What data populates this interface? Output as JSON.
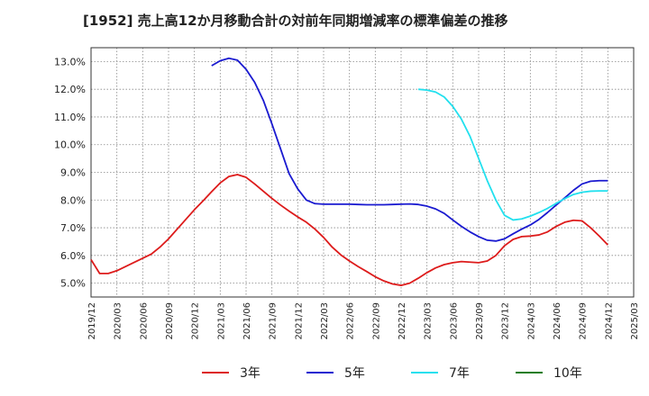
{
  "chart_data": {
    "type": "line",
    "title": "[1952]  売上高12か月移動合計の対前年同期増減率の標準偏差の推移",
    "xlabel": "",
    "ylabel": "",
    "ylim": [
      4.5,
      13.5
    ],
    "y_ticks": [
      5.0,
      6.0,
      7.0,
      8.0,
      9.0,
      10.0,
      11.0,
      12.0,
      13.0
    ],
    "y_tick_labels": [
      "5.0%",
      "6.0%",
      "7.0%",
      "8.0%",
      "9.0%",
      "10.0%",
      "11.0%",
      "12.0%",
      "13.0%"
    ],
    "x_tick_labels": [
      "2019/12",
      "2020/03",
      "2020/06",
      "2020/09",
      "2020/12",
      "2021/03",
      "2021/06",
      "2021/09",
      "2021/12",
      "2022/03",
      "2022/06",
      "2022/09",
      "2022/12",
      "2023/03",
      "2023/06",
      "2023/09",
      "2023/12",
      "2024/03",
      "2024/06",
      "2024/09",
      "2024/12",
      "2025/03"
    ],
    "x_start": "2019/12",
    "grid": true,
    "legend_position": "bottom",
    "series": [
      {
        "name": "3年",
        "color": "#dd1b1b",
        "points": [
          [
            "2019/12",
            5.85
          ],
          [
            "2020/01",
            5.35
          ],
          [
            "2020/02",
            5.35
          ],
          [
            "2020/03",
            5.45
          ],
          [
            "2020/04",
            5.6
          ],
          [
            "2020/05",
            5.75
          ],
          [
            "2020/06",
            5.9
          ],
          [
            "2020/07",
            6.05
          ],
          [
            "2020/08",
            6.3
          ],
          [
            "2020/09",
            6.6
          ],
          [
            "2020/10",
            6.95
          ],
          [
            "2020/11",
            7.3
          ],
          [
            "2020/12",
            7.65
          ],
          [
            "2021/01",
            7.97
          ],
          [
            "2021/02",
            8.3
          ],
          [
            "2021/03",
            8.62
          ],
          [
            "2021/04",
            8.85
          ],
          [
            "2021/05",
            8.92
          ],
          [
            "2021/06",
            8.82
          ],
          [
            "2021/07",
            8.58
          ],
          [
            "2021/08",
            8.32
          ],
          [
            "2021/09",
            8.06
          ],
          [
            "2021/10",
            7.82
          ],
          [
            "2021/11",
            7.6
          ],
          [
            "2021/12",
            7.39
          ],
          [
            "2022/01",
            7.2
          ],
          [
            "2022/02",
            6.95
          ],
          [
            "2022/03",
            6.65
          ],
          [
            "2022/04",
            6.3
          ],
          [
            "2022/05",
            6.02
          ],
          [
            "2022/06",
            5.8
          ],
          [
            "2022/07",
            5.6
          ],
          [
            "2022/08",
            5.42
          ],
          [
            "2022/09",
            5.23
          ],
          [
            "2022/10",
            5.08
          ],
          [
            "2022/11",
            4.97
          ],
          [
            "2022/12",
            4.92
          ],
          [
            "2023/01",
            5.0
          ],
          [
            "2023/02",
            5.18
          ],
          [
            "2023/03",
            5.38
          ],
          [
            "2023/04",
            5.55
          ],
          [
            "2023/05",
            5.67
          ],
          [
            "2023/06",
            5.74
          ],
          [
            "2023/07",
            5.78
          ],
          [
            "2023/08",
            5.76
          ],
          [
            "2023/09",
            5.74
          ],
          [
            "2023/10",
            5.8
          ],
          [
            "2023/11",
            6.0
          ],
          [
            "2023/12",
            6.35
          ],
          [
            "2024/01",
            6.58
          ],
          [
            "2024/02",
            6.68
          ],
          [
            "2024/03",
            6.7
          ],
          [
            "2024/04",
            6.74
          ],
          [
            "2024/05",
            6.85
          ],
          [
            "2024/06",
            7.05
          ],
          [
            "2024/07",
            7.2
          ],
          [
            "2024/08",
            7.27
          ],
          [
            "2024/09",
            7.25
          ],
          [
            "2024/10",
            7.0
          ],
          [
            "2024/11",
            6.7
          ],
          [
            "2024/12",
            6.38
          ]
        ]
      },
      {
        "name": "5年",
        "color": "#1a1ad0",
        "points": [
          [
            "2021/02",
            12.85
          ],
          [
            "2021/03",
            13.03
          ],
          [
            "2021/04",
            13.12
          ],
          [
            "2021/05",
            13.05
          ],
          [
            "2021/06",
            12.72
          ],
          [
            "2021/07",
            12.25
          ],
          [
            "2021/08",
            11.6
          ],
          [
            "2021/09",
            10.75
          ],
          [
            "2021/10",
            9.85
          ],
          [
            "2021/11",
            8.95
          ],
          [
            "2021/12",
            8.4
          ],
          [
            "2022/01",
            8.0
          ],
          [
            "2022/02",
            7.87
          ],
          [
            "2022/03",
            7.85
          ],
          [
            "2022/04",
            7.85
          ],
          [
            "2022/05",
            7.85
          ],
          [
            "2022/06",
            7.85
          ],
          [
            "2022/07",
            7.84
          ],
          [
            "2022/08",
            7.83
          ],
          [
            "2022/09",
            7.83
          ],
          [
            "2022/10",
            7.83
          ],
          [
            "2022/11",
            7.84
          ],
          [
            "2022/12",
            7.85
          ],
          [
            "2023/01",
            7.86
          ],
          [
            "2023/02",
            7.84
          ],
          [
            "2023/03",
            7.78
          ],
          [
            "2023/04",
            7.68
          ],
          [
            "2023/05",
            7.52
          ],
          [
            "2023/06",
            7.28
          ],
          [
            "2023/07",
            7.05
          ],
          [
            "2023/08",
            6.85
          ],
          [
            "2023/09",
            6.68
          ],
          [
            "2023/10",
            6.55
          ],
          [
            "2023/11",
            6.52
          ],
          [
            "2023/12",
            6.6
          ],
          [
            "2024/01",
            6.78
          ],
          [
            "2024/02",
            6.95
          ],
          [
            "2024/03",
            7.1
          ],
          [
            "2024/04",
            7.3
          ],
          [
            "2024/05",
            7.55
          ],
          [
            "2024/06",
            7.82
          ],
          [
            "2024/07",
            8.08
          ],
          [
            "2024/08",
            8.35
          ],
          [
            "2024/09",
            8.58
          ],
          [
            "2024/10",
            8.68
          ],
          [
            "2024/11",
            8.7
          ],
          [
            "2024/12",
            8.7
          ]
        ]
      },
      {
        "name": "7年",
        "color": "#22e0ee",
        "points": [
          [
            "2023/02",
            12.0
          ],
          [
            "2023/03",
            11.97
          ],
          [
            "2023/04",
            11.9
          ],
          [
            "2023/05",
            11.72
          ],
          [
            "2023/06",
            11.38
          ],
          [
            "2023/07",
            10.92
          ],
          [
            "2023/08",
            10.3
          ],
          [
            "2023/09",
            9.5
          ],
          [
            "2023/10",
            8.7
          ],
          [
            "2023/11",
            8.0
          ],
          [
            "2023/12",
            7.45
          ],
          [
            "2024/01",
            7.28
          ],
          [
            "2024/02",
            7.32
          ],
          [
            "2024/03",
            7.42
          ],
          [
            "2024/04",
            7.55
          ],
          [
            "2024/05",
            7.7
          ],
          [
            "2024/06",
            7.88
          ],
          [
            "2024/07",
            8.05
          ],
          [
            "2024/08",
            8.2
          ],
          [
            "2024/09",
            8.28
          ],
          [
            "2024/10",
            8.32
          ],
          [
            "2024/11",
            8.33
          ],
          [
            "2024/12",
            8.33
          ]
        ]
      },
      {
        "name": "10年",
        "color": "#1a7d1a",
        "points": []
      }
    ]
  }
}
